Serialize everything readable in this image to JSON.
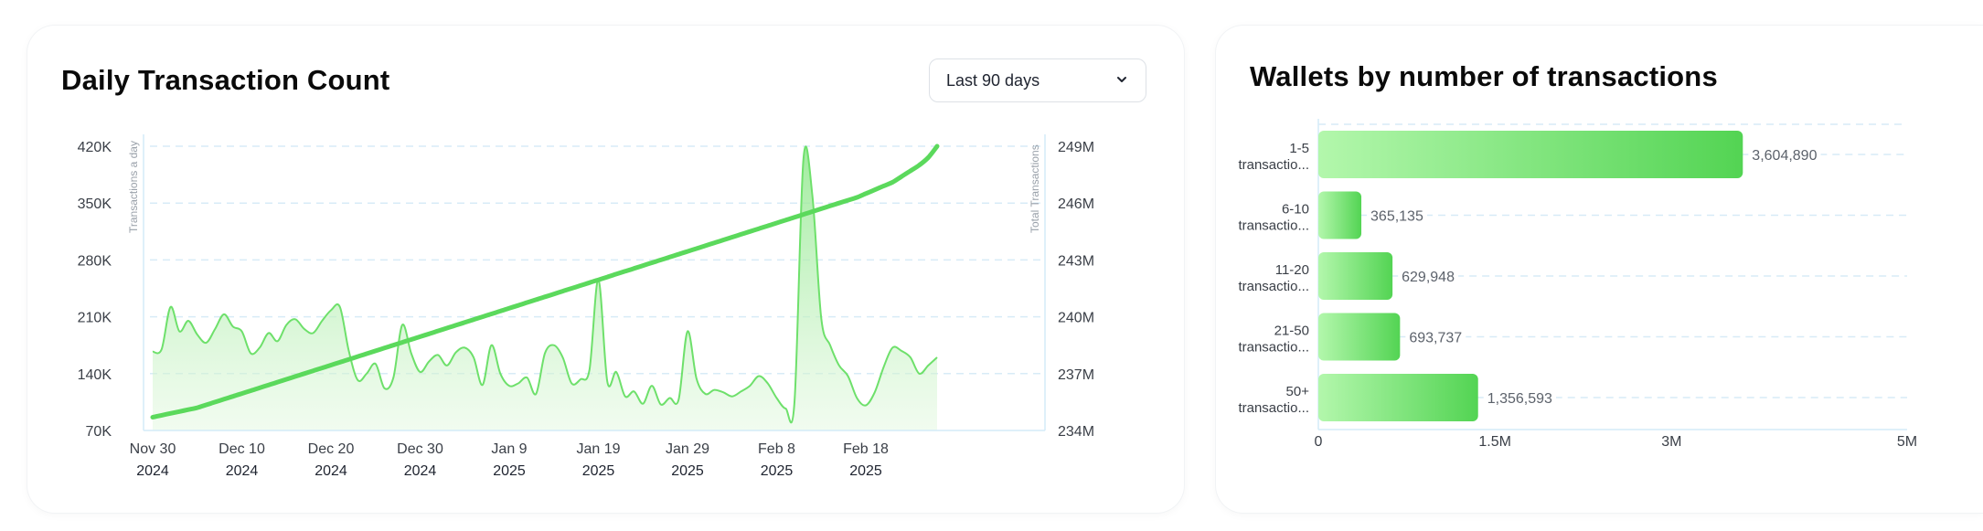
{
  "left_card": {
    "title": "Daily Transaction Count",
    "dropdown": {
      "selected": "Last 90 days",
      "icon": "chevron-down-icon"
    }
  },
  "right_card": {
    "title": "Wallets by number of transactions"
  },
  "colors": {
    "accent_green": "#5bd95c",
    "line_green": "#6ee06b",
    "area_green": "#c9f2c4",
    "bar_light": "#b3f7ac",
    "bar_dark": "#53d453",
    "grid": "#d7ebf7",
    "axis_text": "#3a3f47"
  },
  "chart_data": [
    {
      "type": "line",
      "xlabel": "",
      "ylabel": "Transactions a day",
      "y2label": "Total Transactions",
      "x_tick_labels": [
        {
          "line1": "Nov 30",
          "line2": "2024"
        },
        {
          "line1": "Dec 10",
          "line2": "2024"
        },
        {
          "line1": "Dec 20",
          "line2": "2024"
        },
        {
          "line1": "Dec 30",
          "line2": "2024"
        },
        {
          "line1": "Jan 9",
          "line2": "2025"
        },
        {
          "line1": "Jan 19",
          "line2": "2025"
        },
        {
          "line1": "Jan 29",
          "line2": "2025"
        },
        {
          "line1": "Feb 8",
          "line2": "2025"
        },
        {
          "line1": "Feb 18",
          "line2": "2025"
        }
      ],
      "y_tick_labels": [
        "70K",
        "140K",
        "210K",
        "280K",
        "350K",
        "420K"
      ],
      "y_ticks": [
        70000,
        140000,
        210000,
        280000,
        350000,
        420000
      ],
      "ylim": [
        70000,
        420000
      ],
      "y2_tick_labels": [
        "234M",
        "237M",
        "240M",
        "243M",
        "246M",
        "249M"
      ],
      "y2_ticks": [
        234000000,
        237000000,
        240000000,
        243000000,
        246000000,
        249000000
      ],
      "y2lim": [
        234000000,
        249000000
      ],
      "grid": true,
      "x": [
        "2024-11-30",
        "2024-12-01",
        "2024-12-02",
        "2024-12-03",
        "2024-12-04",
        "2024-12-05",
        "2024-12-06",
        "2024-12-07",
        "2024-12-08",
        "2024-12-09",
        "2024-12-10",
        "2024-12-11",
        "2024-12-12",
        "2024-12-13",
        "2024-12-14",
        "2024-12-15",
        "2024-12-16",
        "2024-12-17",
        "2024-12-18",
        "2024-12-19",
        "2024-12-20",
        "2024-12-21",
        "2024-12-22",
        "2024-12-23",
        "2024-12-24",
        "2024-12-25",
        "2024-12-26",
        "2024-12-27",
        "2024-12-28",
        "2024-12-29",
        "2024-12-30",
        "2024-12-31",
        "2025-01-01",
        "2025-01-02",
        "2025-01-03",
        "2025-01-04",
        "2025-01-05",
        "2025-01-06",
        "2025-01-07",
        "2025-01-08",
        "2025-01-09",
        "2025-01-10",
        "2025-01-11",
        "2025-01-12",
        "2025-01-13",
        "2025-01-14",
        "2025-01-15",
        "2025-01-16",
        "2025-01-17",
        "2025-01-18",
        "2025-01-19",
        "2025-01-20",
        "2025-01-21",
        "2025-01-22",
        "2025-01-23",
        "2025-01-24",
        "2025-01-25",
        "2025-01-26",
        "2025-01-27",
        "2025-01-28",
        "2025-01-29",
        "2025-01-30",
        "2025-01-31",
        "2025-02-01",
        "2025-02-02",
        "2025-02-03",
        "2025-02-04",
        "2025-02-05",
        "2025-02-06",
        "2025-02-07",
        "2025-02-08",
        "2025-02-09",
        "2025-02-10",
        "2025-02-11",
        "2025-02-12",
        "2025-02-13",
        "2025-02-14",
        "2025-02-15",
        "2025-02-16",
        "2025-02-17",
        "2025-02-18",
        "2025-02-19",
        "2025-02-20",
        "2025-02-21",
        "2025-02-22",
        "2025-02-23",
        "2025-02-24",
        "2025-02-25",
        "2025-02-26"
      ],
      "series": [
        {
          "name": "Transactions a day",
          "axis": "left",
          "values": [
            167000,
            170000,
            222000,
            192000,
            205000,
            188000,
            178000,
            195000,
            213000,
            198000,
            192000,
            165000,
            172000,
            190000,
            180000,
            200000,
            207000,
            195000,
            190000,
            205000,
            218000,
            222000,
            168000,
            132000,
            140000,
            152000,
            122000,
            135000,
            200000,
            165000,
            142000,
            155000,
            163000,
            150000,
            166000,
            172000,
            160000,
            126000,
            175000,
            140000,
            125000,
            128000,
            135000,
            115000,
            165000,
            175000,
            160000,
            128000,
            133000,
            145000,
            256000,
            130000,
            142000,
            112000,
            118000,
            103000,
            125000,
            102000,
            110000,
            108000,
            192000,
            134000,
            115000,
            120000,
            117000,
            112000,
            118000,
            125000,
            137000,
            128000,
            110000,
            97000,
            105000,
            404000,
            360000,
            208000,
            175000,
            150000,
            137000,
            110000,
            101000,
            117000,
            148000,
            172000,
            168000,
            160000,
            140000,
            150000,
            160000
          ],
          "color": "#6ee06b"
        },
        {
          "name": "Total Transactions",
          "axis": "right",
          "start": 234700000,
          "end": 249000000,
          "values": [
            234700000,
            234800000,
            234900000,
            235000000,
            235100000,
            235200000,
            235350000,
            235500000,
            235650000,
            235800000,
            235950000,
            236100000,
            236250000,
            236400000,
            236550000,
            236700000,
            236850000,
            237000000,
            237150000,
            237300000,
            237450000,
            237600000,
            237750000,
            237900000,
            238050000,
            238200000,
            238350000,
            238500000,
            238650000,
            238800000,
            238950000,
            239100000,
            239250000,
            239400000,
            239550000,
            239700000,
            239850000,
            240000000,
            240150000,
            240300000,
            240450000,
            240600000,
            240750000,
            240900000,
            241050000,
            241200000,
            241350000,
            241500000,
            241650000,
            241800000,
            241950000,
            242100000,
            242250000,
            242400000,
            242550000,
            242700000,
            242850000,
            243000000,
            243150000,
            243300000,
            243450000,
            243600000,
            243750000,
            243900000,
            244050000,
            244200000,
            244350000,
            244500000,
            244650000,
            244800000,
            244950000,
            245100000,
            245250000,
            245400000,
            245550000,
            245700000,
            245850000,
            246000000,
            246150000,
            246300000,
            246500000,
            246700000,
            246900000,
            247100000,
            247400000,
            247700000,
            248000000,
            248400000,
            249000000
          ],
          "color": "#5bd95c"
        }
      ]
    },
    {
      "type": "bar",
      "orientation": "horizontal",
      "categories": [
        {
          "line1": "1-5",
          "line2": "transactio..."
        },
        {
          "line1": "6-10",
          "line2": "transactio..."
        },
        {
          "line1": "11-20",
          "line2": "transactio..."
        },
        {
          "line1": "21-50",
          "line2": "transactio..."
        },
        {
          "line1": "50+",
          "line2": "transactio..."
        }
      ],
      "values": [
        3604890,
        365135,
        629948,
        693737,
        1356593
      ],
      "value_labels": [
        "3,604,890",
        "365,135",
        "629,948",
        "693,737",
        "1,356,593"
      ],
      "x_tick_labels": [
        "0",
        "1.5M",
        "3M",
        "5M"
      ],
      "x_ticks": [
        0,
        1500000,
        3000000,
        5000000
      ],
      "xlim": [
        0,
        5000000
      ],
      "grid": true
    }
  ]
}
